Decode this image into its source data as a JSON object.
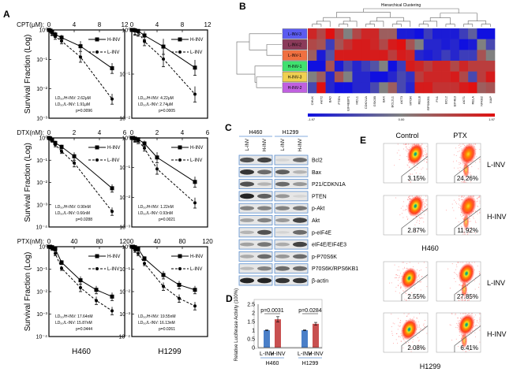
{
  "panel_labels": {
    "a": "A",
    "b": "B",
    "c": "C",
    "d": "D",
    "e": "E"
  },
  "panel_a": {
    "ylabel": "Survival Fraction (Log)",
    "cell_lines": [
      "H460",
      "H1299"
    ]
  },
  "chart_data": [
    {
      "type": "line",
      "drug_label": "CPT(μM):",
      "cell_line": "H460",
      "yscale": "log",
      "x": [
        0,
        0.25,
        0.5,
        1,
        2,
        5,
        10
      ],
      "xlim": [
        0,
        12
      ],
      "xticks": [
        0,
        4,
        8,
        12
      ],
      "ylim_exp": [
        -3,
        0
      ],
      "ytick_labels": [
        "10⁰",
        "10⁻¹",
        "10⁻²",
        "10⁻³"
      ],
      "series": [
        {
          "name": "H-INV",
          "values": [
            1,
            0.95,
            0.85,
            0.7,
            0.55,
            0.28,
            0.05
          ]
        },
        {
          "name": "L-INV",
          "values": [
            1,
            0.9,
            0.8,
            0.6,
            0.42,
            0.12,
            0.0045
          ]
        }
      ],
      "annotations": [
        "LD₅₀/H-INV: 2.62μM",
        "LD₅₀/L-INV: 1.91μM",
        "p=0.0096"
      ]
    },
    {
      "type": "line",
      "drug_label": "",
      "cell_line": "H1299",
      "yscale": "log",
      "x": [
        0,
        0.25,
        0.5,
        1,
        2,
        5,
        10
      ],
      "xlim": [
        0,
        12
      ],
      "xticks": [
        0,
        4,
        8,
        12
      ],
      "ylim_exp": [
        -2,
        0
      ],
      "ytick_labels": [
        "10⁰",
        "10⁻¹",
        "10⁻²"
      ],
      "series": [
        {
          "name": "H-INV",
          "values": [
            1,
            1,
            0.98,
            0.95,
            0.75,
            0.42,
            0.14
          ]
        },
        {
          "name": "L-INV",
          "values": [
            1,
            1,
            0.95,
            0.9,
            0.55,
            0.22,
            0.035
          ]
        }
      ],
      "annotations": [
        "LD₅₀/H-INV: 4.22μM",
        "LD₅₀/L-INV: 2.74μM",
        "p=0.0005"
      ]
    },
    {
      "type": "line",
      "drug_label": "DTX(nM):",
      "cell_line": "H460",
      "yscale": "log",
      "x": [
        0,
        0.1,
        0.25,
        0.5,
        1,
        2,
        5
      ],
      "xlim": [
        0,
        6
      ],
      "xticks": [
        0,
        2,
        4,
        6
      ],
      "ylim_exp": [
        -4,
        0
      ],
      "ytick_labels": [
        "10⁰",
        "10⁻¹",
        "10⁻²",
        "10⁻³",
        "10⁻⁴"
      ],
      "series": [
        {
          "name": "H-INV",
          "values": [
            1,
            0.95,
            0.85,
            0.6,
            0.4,
            0.15,
            0.0055
          ]
        },
        {
          "name": "L-INV",
          "values": [
            1,
            0.9,
            0.8,
            0.5,
            0.25,
            0.075,
            0.0005
          ]
        }
      ],
      "annotations": [
        "LD₅₀/H-INV: 0.90nM",
        "LD₅₀/L-INV: 0.66nM",
        "p=0.0288"
      ]
    },
    {
      "type": "line",
      "drug_label": "",
      "cell_line": "H1299",
      "yscale": "log",
      "x": [
        0,
        0.1,
        0.25,
        0.5,
        1,
        2,
        5
      ],
      "xlim": [
        0,
        6
      ],
      "xticks": [
        0,
        2,
        4,
        6
      ],
      "ylim_exp": [
        -3,
        0
      ],
      "ytick_labels": [
        "10⁰",
        "10⁻¹",
        "10⁻²",
        "10⁻³"
      ],
      "series": [
        {
          "name": "H-INV",
          "values": [
            1,
            1,
            0.95,
            0.9,
            0.65,
            0.22,
            0.033
          ]
        },
        {
          "name": "L-INV",
          "values": [
            1,
            1,
            0.9,
            0.8,
            0.45,
            0.09,
            0.0065
          ]
        }
      ],
      "annotations": [
        "LD₅₀/H-INV: 1.22nM",
        "LD₅₀/L-INV: 0.93nM",
        "p=0.0021"
      ]
    },
    {
      "type": "line",
      "drug_label": "PTX(nM):",
      "cell_line": "H460",
      "yscale": "log",
      "x": [
        0,
        2,
        5,
        10,
        20,
        50,
        75,
        100
      ],
      "xlim": [
        0,
        120
      ],
      "xticks": [
        0,
        40,
        80,
        120
      ],
      "ylim_exp": [
        -4,
        0
      ],
      "ytick_labels": [
        "10⁰",
        "10⁻¹",
        "10⁻²",
        "10⁻³",
        "10⁻⁴"
      ],
      "series": [
        {
          "name": "H-INV",
          "values": [
            1,
            1,
            0.95,
            0.8,
            0.2,
            0.032,
            0.012,
            0.006
          ]
        },
        {
          "name": "L-INV",
          "values": [
            1,
            0.9,
            0.85,
            0.5,
            0.11,
            0.015,
            0.004,
            0.0014
          ]
        }
      ],
      "annotations": [
        "LD₅₀/H-INV: 17.64nM",
        "LD₅₀/L-INV: 15.87nM",
        "p=0.0444"
      ]
    },
    {
      "type": "line",
      "drug_label": "",
      "cell_line": "H1299",
      "yscale": "log",
      "x": [
        0,
        2,
        5,
        10,
        20,
        50,
        75,
        100
      ],
      "xlim": [
        0,
        120
      ],
      "xticks": [
        0,
        40,
        80,
        120
      ],
      "ylim_exp": [
        -4,
        0
      ],
      "ytick_labels": [
        "10⁰",
        "10⁻¹",
        "10⁻²",
        "10⁻³",
        "10⁻⁴"
      ],
      "series": [
        {
          "name": "H-INV",
          "values": [
            1,
            1,
            0.95,
            0.8,
            0.3,
            0.055,
            0.02,
            0.012
          ]
        },
        {
          "name": "L-INV",
          "values": [
            1,
            0.9,
            0.7,
            0.5,
            0.18,
            0.017,
            0.005,
            0.0023
          ]
        }
      ],
      "annotations": [
        "LD₅₀/H-INV: 19.55nM",
        "LD₅₀/L-INV: 16.13nM",
        "p=0.0261"
      ]
    },
    {
      "type": "heatmap",
      "title": "Hierarchical Clustering",
      "rows": [
        "L-INV-3",
        "L-INV-2",
        "L-INV-1",
        "H-INV-1",
        "H-INV-3",
        "H-INV-2"
      ],
      "row_colors": [
        "#5b5bf0",
        "#8b3a5a",
        "#f07040",
        "#40e070",
        "#f0d050",
        "#c060e0"
      ],
      "columns": [
        "CHUK",
        "AKT2",
        "BAD",
        "PTEN",
        "EIF4EBP1",
        "MCL1",
        "CDKN1A",
        "GSK3B",
        "BAX",
        "BCL2L1",
        "AKT3",
        "MTOR",
        "RELB",
        "RPS6KB1",
        "FN1",
        "BCL2",
        "EIF4E3",
        "AKT1",
        "RELA",
        "NFKB2",
        "XIAP"
      ],
      "scale_colors": {
        "low": "#1010e0",
        "mid": "#808080",
        "high": "#e01010"
      },
      "colorbar_labels": [
        "-1.97",
        "0.00",
        "1.97"
      ],
      "values": [
        [
          0.8,
          0.5,
          1,
          0.5,
          0,
          0.5,
          0.8,
          0.8,
          0.3,
          0.3,
          -0.9,
          -0.9,
          -1,
          -0.6,
          -0.9,
          -0.9,
          -0.9,
          -0.6,
          -0.3,
          -1,
          -1
        ],
        [
          0.5,
          0.4,
          -0.6,
          0.4,
          0.7,
          0.9,
          0.9,
          0.8,
          0.5,
          0.9,
          1,
          0.4,
          0,
          -0.8,
          -0.8,
          -0.9,
          -0.8,
          -1,
          -0.9,
          0,
          -0.5
        ],
        [
          0.3,
          -0.9,
          -0.4,
          0.9,
          0.9,
          0.9,
          0.9,
          0.9,
          0.9,
          0.6,
          0.9,
          0.8,
          -0.8,
          -0.9,
          -0.8,
          -0.6,
          -0.8,
          -0.6,
          -0.6,
          0.4,
          0
        ],
        [
          -1,
          -1,
          0.4,
          -0.9,
          -0.5,
          -0.8,
          -0.6,
          -0.4,
          0,
          -1,
          -0.6,
          0.9,
          0.8,
          0.6,
          0.8,
          0.8,
          0.5,
          0.8,
          0.6,
          0.6,
          0.6
        ],
        [
          0,
          0.3,
          -0.8,
          0.4,
          0,
          -0.8,
          -0.8,
          -1,
          -1,
          -0.8,
          -0.5,
          -0.7,
          0.6,
          0.8,
          0.8,
          0.8,
          0.9,
          0.5,
          -0.5,
          0.6,
          0.9
        ],
        [
          -0.5,
          1,
          -0.8,
          -1,
          -1,
          -0.8,
          -0.8,
          -0.5,
          0,
          0.3,
          -0.5,
          -0.8,
          0.9,
          0.9,
          0.7,
          0.7,
          0.7,
          0.9,
          1,
          0.3,
          0.4
        ]
      ]
    },
    {
      "type": "bar",
      "ylabel": "Relative Luciferase Activity (100%)",
      "ylim": [
        0,
        2.5
      ],
      "yticks": [
        "0",
        "0.5",
        "1",
        "1.5",
        "2",
        "2.5"
      ],
      "categories": [
        "L-INV",
        "H-INV"
      ],
      "series_colors": [
        "#4a7fc8",
        "#c85050"
      ],
      "groups": [
        {
          "name": "H460",
          "values": [
            1.0,
            1.63
          ],
          "errors": [
            0.02,
            0.15
          ],
          "p": "p=0.0031"
        },
        {
          "name": "H1299",
          "values": [
            1.0,
            1.37
          ],
          "errors": [
            0.02,
            0.08
          ],
          "p": "p=0.0284"
        }
      ]
    }
  ],
  "blots": {
    "cell_lines": [
      "H460",
      "H1299"
    ],
    "lanes": [
      "L-INV",
      "H-INV",
      "L-INV",
      "H-INV"
    ],
    "proteins": [
      {
        "name": "Bcl2",
        "intensity": [
          0.8,
          0.85,
          0.1,
          0.7
        ]
      },
      {
        "name": "Bax",
        "intensity": [
          0.9,
          0.7,
          0.75,
          0.35
        ]
      },
      {
        "name": "P21/CDKN1A",
        "intensity": [
          0.8,
          0.35,
          0.7,
          0.5
        ]
      },
      {
        "name": "PTEN",
        "intensity": [
          0.95,
          0.75,
          0.5,
          0.1
        ]
      },
      {
        "name": "p-Akt",
        "intensity": [
          0.6,
          0.6,
          0.6,
          0.65
        ]
      },
      {
        "name": "Akt",
        "intensity": [
          0.45,
          0.6,
          0.5,
          0.85
        ]
      },
      {
        "name": "p-eIF4E",
        "intensity": [
          0.35,
          0.8,
          0.1,
          0.7
        ]
      },
      {
        "name": "eIF4E/EIF4E3",
        "intensity": [
          0.45,
          0.65,
          0.4,
          0.85
        ]
      },
      {
        "name": "p-P70S6K",
        "intensity": [
          0.4,
          0.7,
          0.5,
          0.7
        ]
      },
      {
        "name": "P70S6K/RPS6KB1",
        "intensity": [
          0.3,
          0.6,
          0.7,
          0.7
        ]
      },
      {
        "name": "β-actin",
        "intensity": [
          0.95,
          0.95,
          0.9,
          0.9
        ]
      }
    ]
  },
  "flow": {
    "conditions": [
      "Control",
      "PTX"
    ],
    "groups": [
      "L-INV",
      "H-INV"
    ],
    "blocks": [
      {
        "cell_line": "H460",
        "percentages": [
          [
            "3.15%",
            "24.26%"
          ],
          [
            "2.87%",
            "11.92%"
          ]
        ]
      },
      {
        "cell_line": "H1299",
        "percentages": [
          [
            "2.55%",
            "27.85%"
          ],
          [
            "2.08%",
            "6.41%"
          ]
        ]
      }
    ]
  }
}
